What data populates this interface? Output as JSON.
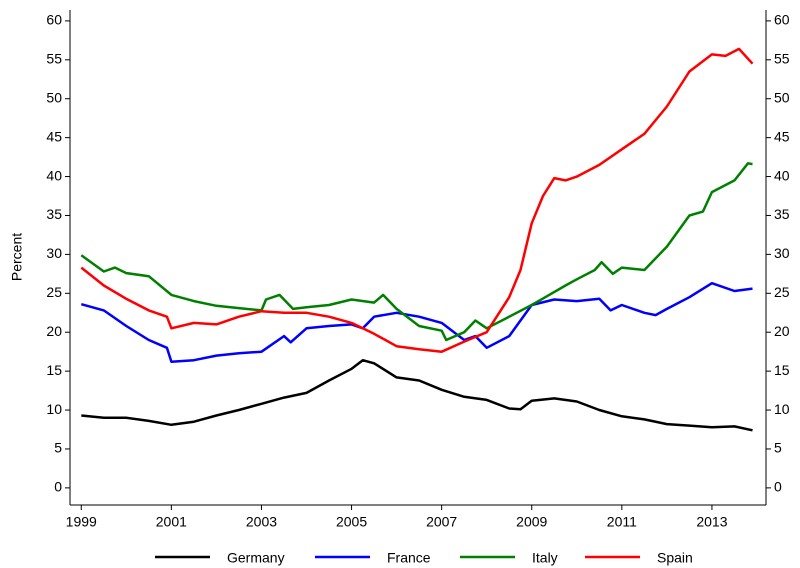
{
  "chart_data": {
    "type": "line",
    "y_label": "Percent",
    "xlim": [
      1998.75,
      2014.2
    ],
    "xticks": [
      1999,
      2001,
      2003,
      2005,
      2007,
      2009,
      2011,
      2013
    ],
    "ylim": [
      -2.2,
      61.4
    ],
    "yticks": [
      0,
      5,
      10,
      15,
      20,
      25,
      30,
      35,
      40,
      45,
      50,
      55,
      60
    ],
    "y2lim": [
      -2.2,
      61.4
    ],
    "y2ticks": [
      0,
      5,
      10,
      15,
      20,
      25,
      30,
      35,
      40,
      45,
      50,
      55,
      60
    ],
    "legend": "bottom",
    "grid": false,
    "series": [
      {
        "name": "Germany",
        "color": "#000000",
        "x": [
          1999,
          1999.5,
          2000,
          2000.5,
          2001,
          2001.5,
          2002,
          2002.5,
          2003,
          2003.5,
          2004,
          2004.5,
          2005,
          2005.25,
          2005.5,
          2006,
          2006.5,
          2007,
          2007.5,
          2008,
          2008.5,
          2008.75,
          2009,
          2009.5,
          2010,
          2010.5,
          2011,
          2011.5,
          2012,
          2012.5,
          2013,
          2013.5,
          2013.9
        ],
        "values": [
          9.3,
          9.0,
          9.0,
          8.6,
          8.1,
          8.5,
          9.3,
          10.0,
          10.8,
          11.6,
          12.2,
          13.8,
          15.3,
          16.4,
          16.0,
          14.2,
          13.8,
          12.6,
          11.7,
          11.3,
          10.2,
          10.1,
          11.2,
          11.5,
          11.1,
          10.0,
          9.2,
          8.8,
          8.2,
          8.0,
          7.8,
          7.9,
          7.4
        ]
      },
      {
        "name": "France",
        "color": "#0000ff",
        "x": [
          1999,
          1999.5,
          2000,
          2000.5,
          2000.9,
          2001,
          2001.5,
          2002,
          2002.5,
          2003,
          2003.5,
          2003.65,
          2004,
          2004.5,
          2005,
          2005.25,
          2005.5,
          2006,
          2006.5,
          2007,
          2007.5,
          2007.75,
          2008,
          2008.5,
          2009,
          2009.5,
          2010,
          2010.5,
          2010.75,
          2011,
          2011.5,
          2011.75,
          2012,
          2012.5,
          2013,
          2013.5,
          2013.9
        ],
        "values": [
          23.6,
          22.8,
          20.8,
          19.0,
          18.0,
          16.2,
          16.4,
          17.0,
          17.3,
          17.5,
          19.5,
          18.7,
          20.5,
          20.8,
          21.0,
          20.5,
          22.0,
          22.5,
          22.0,
          21.2,
          19.0,
          19.5,
          18.0,
          19.5,
          23.5,
          24.2,
          24.0,
          24.3,
          22.8,
          23.5,
          22.5,
          22.2,
          23.0,
          24.5,
          26.3,
          25.3,
          25.6
        ]
      },
      {
        "name": "Italy",
        "color": "#008000",
        "x": [
          1999,
          1999.5,
          1999.75,
          2000,
          2000.5,
          2001,
          2001.5,
          2002,
          2002.5,
          2003,
          2003.1,
          2003.4,
          2003.7,
          2004,
          2004.5,
          2005,
          2005.5,
          2005.7,
          2006,
          2006.5,
          2007,
          2007.1,
          2007.5,
          2007.75,
          2008,
          2008.5,
          2009,
          2009.3,
          2009.75,
          2010,
          2010.4,
          2010.55,
          2010.8,
          2011,
          2011.5,
          2012,
          2012.5,
          2012.8,
          2013,
          2013.5,
          2013.8,
          2013.9
        ],
        "values": [
          29.9,
          27.8,
          28.3,
          27.6,
          27.2,
          24.8,
          24.0,
          23.4,
          23.1,
          22.8,
          24.2,
          24.8,
          23.0,
          23.2,
          23.5,
          24.2,
          23.8,
          24.8,
          23.0,
          20.8,
          20.2,
          19.0,
          20.0,
          21.5,
          20.5,
          22.0,
          23.5,
          24.5,
          26.0,
          26.8,
          28.0,
          29.0,
          27.5,
          28.3,
          28.0,
          31.0,
          35.0,
          35.5,
          38.0,
          39.5,
          41.7,
          41.6
        ]
      },
      {
        "name": "Spain",
        "color": "#ff0000",
        "x": [
          1999,
          1999.5,
          2000,
          2000.5,
          2000.9,
          2001,
          2001.5,
          2002,
          2002.5,
          2003,
          2003.5,
          2004,
          2004.5,
          2005,
          2005.5,
          2006,
          2006.5,
          2007,
          2007.5,
          2008,
          2008.5,
          2008.75,
          2009,
          2009.25,
          2009.5,
          2009.75,
          2010,
          2010.5,
          2011,
          2011.5,
          2012,
          2012.5,
          2013,
          2013.3,
          2013.6,
          2013.9
        ],
        "values": [
          28.3,
          26.0,
          24.3,
          22.8,
          22.0,
          20.5,
          21.2,
          21.0,
          22.0,
          22.7,
          22.5,
          22.5,
          22.0,
          21.2,
          19.8,
          18.2,
          17.8,
          17.5,
          18.8,
          20.0,
          24.5,
          28.0,
          34.0,
          37.5,
          39.8,
          39.5,
          40.0,
          41.5,
          43.5,
          45.5,
          49.0,
          53.5,
          55.7,
          55.5,
          56.4,
          54.5
        ]
      }
    ]
  }
}
